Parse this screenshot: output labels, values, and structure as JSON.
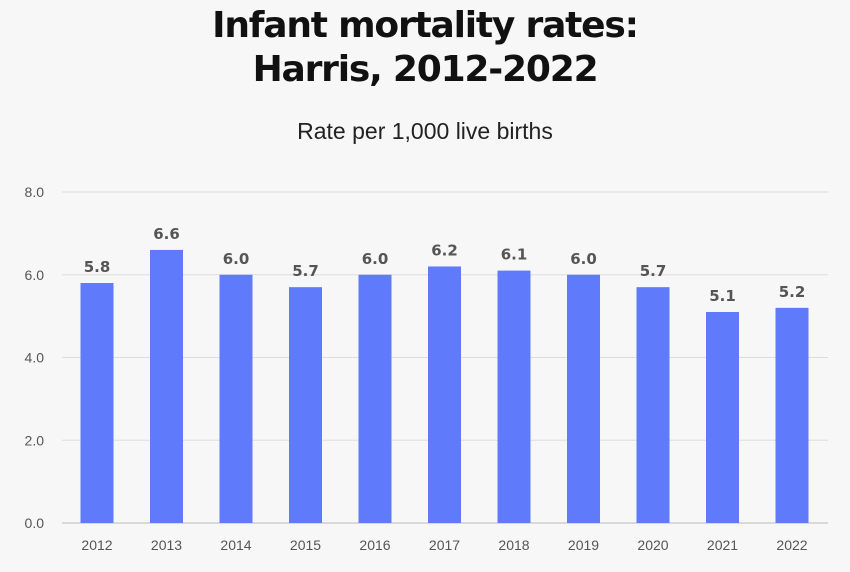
{
  "chart_data": {
    "type": "bar",
    "title_lines": [
      "Infant mortality rates:",
      "Harris, 2012-2022"
    ],
    "subtitle": "Rate per 1,000 live births",
    "categories": [
      "2012",
      "2013",
      "2014",
      "2015",
      "2016",
      "2017",
      "2018",
      "2019",
      "2020",
      "2021",
      "2022"
    ],
    "values": [
      5.8,
      6.6,
      6.0,
      5.7,
      6.0,
      6.2,
      6.1,
      6.0,
      5.7,
      5.1,
      5.2
    ],
    "value_labels": [
      "5.8",
      "6.6",
      "6.0",
      "5.7",
      "6.0",
      "6.2",
      "6.1",
      "6.0",
      "5.7",
      "5.1",
      "5.2"
    ],
    "yticks": [
      0,
      2,
      4,
      6,
      8
    ],
    "ytick_labels": [
      "0.0",
      "2.0",
      "4.0",
      "6.0",
      "8.0"
    ],
    "ylim": [
      0,
      8
    ],
    "xlabel": "",
    "ylabel": "",
    "grid": true,
    "legend": "none"
  },
  "colors": {
    "bar": "#5f7afb",
    "grid": "#dddddd",
    "axis": "#bbbbbb"
  }
}
